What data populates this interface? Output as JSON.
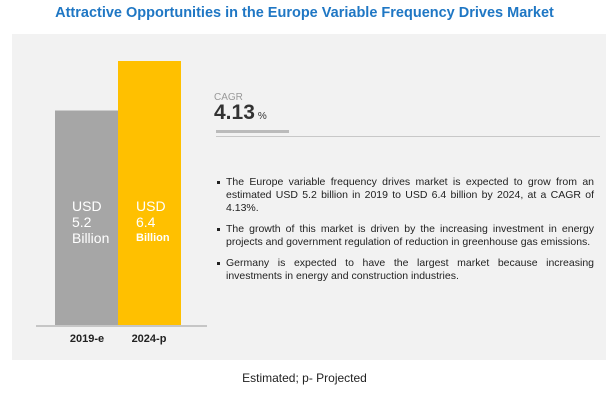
{
  "title": "Attractive Opportunities in the Europe Variable Frequency Drives Market",
  "chart_data": {
    "type": "bar",
    "categories": [
      "2019-e",
      "2024-p"
    ],
    "values": [
      5.2,
      6.4
    ],
    "unit": "USD Billion",
    "colors": [
      "#a6a6a6",
      "#ffc000"
    ],
    "data_labels": [
      {
        "l1": "USD",
        "l2": "5.2",
        "l3": "Billion"
      },
      {
        "l1": "USD",
        "l2": "6.4",
        "l3": "Billion"
      }
    ],
    "grid": false
  },
  "cagr": {
    "label": "CAGR",
    "value": "4.13",
    "unit": "%"
  },
  "bullets": [
    "The Europe variable frequency drives market is expected to grow from an estimated USD 5.2 billion in 2019 to USD 6.4 billion by 2024, at a CAGR of 4.13%.",
    "The growth of this market is driven by the increasing investment in energy projects and government regulation of reduction in greenhouse gas emissions.",
    "Germany is expected to have the largest market because increasing investments in energy and construction industries."
  ],
  "footer": "Estimated; p- Projected",
  "colors": {
    "title": "#1f77c4",
    "panel": "#f2f2f2"
  }
}
